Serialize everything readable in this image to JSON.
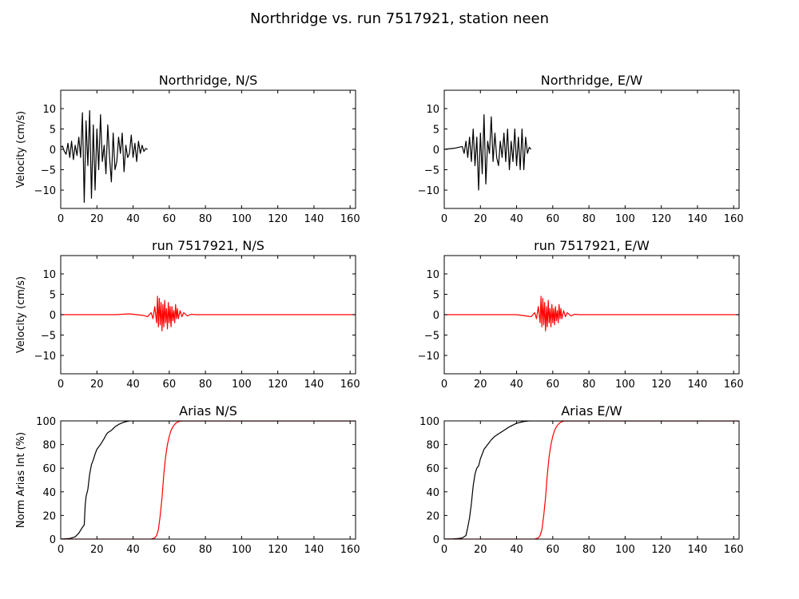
{
  "figure_title": "Northridge vs. run 7517921, station neen",
  "colors": {
    "recorded": "#000000",
    "simulated": "#ff0000"
  },
  "chart_data": [
    {
      "type": "line",
      "title": "Northridge, N/S",
      "xlabel": "",
      "ylabel": "Velocity (cm/s)",
      "xlim": [
        0,
        163
      ],
      "ylim": [
        -14.5,
        14.5
      ],
      "xticks": [
        0,
        20,
        40,
        60,
        80,
        100,
        120,
        140,
        160
      ],
      "yticks": [
        -10,
        -5,
        0,
        5,
        10
      ],
      "grid": false,
      "series": [
        {
          "color": "#000000",
          "x": [
            0,
            1,
            2,
            3,
            4,
            5,
            6,
            7,
            8,
            9,
            10,
            11,
            12,
            13,
            14,
            15,
            16,
            17,
            18,
            19,
            20,
            21,
            22,
            23,
            24,
            25,
            26,
            27,
            28,
            29,
            30,
            31,
            32,
            33,
            34,
            35,
            36,
            37,
            38,
            39,
            40,
            41,
            42,
            43,
            44,
            45,
            46,
            47,
            48
          ],
          "y": [
            0.5,
            0.8,
            -0.5,
            -1.2,
            1.5,
            -2,
            2,
            -2.5,
            1,
            -1.5,
            3,
            -2,
            9,
            -13,
            7,
            -4,
            9.5,
            -12,
            6,
            -10,
            5,
            -5,
            8.5,
            -3,
            1,
            -6,
            6,
            -2,
            -8,
            4,
            -5,
            -3,
            3,
            -1,
            4,
            -5.5,
            1,
            -2,
            -1,
            3.5,
            -2,
            1.5,
            -3,
            2,
            -1,
            1,
            -0.5,
            0.2,
            0
          ]
        }
      ]
    },
    {
      "type": "line",
      "title": "Northridge, E/W",
      "xlabel": "",
      "ylabel": "",
      "xlim": [
        0,
        163
      ],
      "ylim": [
        -14.5,
        14.5
      ],
      "xticks": [
        0,
        20,
        40,
        60,
        80,
        100,
        120,
        140,
        160
      ],
      "yticks": [
        -10,
        -5,
        0,
        5,
        10
      ],
      "grid": false,
      "series": [
        {
          "color": "#000000",
          "x": [
            0,
            2,
            4,
            6,
            8,
            10,
            11,
            12,
            13,
            14,
            15,
            16,
            17,
            18,
            19,
            20,
            21,
            22,
            23,
            24,
            25,
            26,
            27,
            28,
            29,
            30,
            31,
            32,
            33,
            34,
            35,
            36,
            37,
            38,
            39,
            40,
            41,
            42,
            43,
            44,
            45,
            46,
            47,
            48
          ],
          "y": [
            0,
            0.1,
            0.2,
            0.3,
            0.5,
            0.7,
            -1,
            2,
            -2,
            3,
            -3,
            5,
            -4,
            3,
            -10,
            4,
            -6,
            8.5,
            -8.5,
            2,
            -1,
            8,
            -3,
            4,
            -2,
            -4,
            2,
            -2,
            4,
            -3,
            5,
            -5,
            2,
            -3,
            5,
            -4,
            3,
            -5,
            5,
            -5,
            3,
            -1,
            0.5,
            0
          ]
        }
      ]
    },
    {
      "type": "line",
      "title": "run 7517921, N/S",
      "xlabel": "",
      "ylabel": "Velocity (cm/s)",
      "xlim": [
        0,
        163
      ],
      "ylim": [
        -14.5,
        14.5
      ],
      "xticks": [
        0,
        20,
        40,
        60,
        80,
        100,
        120,
        140,
        160
      ],
      "yticks": [
        -10,
        -5,
        0,
        5,
        10
      ],
      "grid": false,
      "series": [
        {
          "color": "#ff0000",
          "x": [
            0,
            10,
            20,
            30,
            38,
            42,
            46,
            48,
            50,
            51,
            52,
            53,
            53.5,
            54,
            54.5,
            55,
            55.5,
            56,
            56.5,
            57,
            57.5,
            58,
            58.5,
            59,
            59.5,
            60,
            60.5,
            61,
            61.5,
            62,
            62.5,
            63,
            63.5,
            64,
            64.5,
            65,
            66,
            67,
            68,
            70,
            72,
            75,
            80,
            90,
            100,
            120,
            140,
            160,
            163
          ],
          "y": [
            0,
            0,
            0,
            0,
            0.2,
            0,
            -0.2,
            -0.5,
            0.5,
            -1,
            2,
            -2,
            4.5,
            -3,
            4,
            -2.5,
            3,
            -4,
            2.5,
            -3,
            3.5,
            -2,
            1.5,
            -3.5,
            3,
            -2,
            2,
            -3,
            2,
            -1.5,
            1,
            -2,
            2.5,
            -1,
            1.5,
            -1,
            1,
            -0.5,
            0.5,
            -0.3,
            0.1,
            0,
            0,
            0,
            0,
            0,
            0,
            0,
            0
          ]
        }
      ]
    },
    {
      "type": "line",
      "title": "run 7517921, E/W",
      "xlabel": "",
      "ylabel": "",
      "xlim": [
        0,
        163
      ],
      "ylim": [
        -14.5,
        14.5
      ],
      "xticks": [
        0,
        20,
        40,
        60,
        80,
        100,
        120,
        140,
        160
      ],
      "yticks": [
        -10,
        -5,
        0,
        5,
        10
      ],
      "grid": false,
      "series": [
        {
          "color": "#ff0000",
          "x": [
            0,
            10,
            20,
            30,
            40,
            45,
            48,
            50,
            51,
            52,
            53,
            53.5,
            54,
            54.5,
            55,
            55.5,
            56,
            56.5,
            57,
            57.5,
            58,
            58.5,
            59,
            59.5,
            60,
            60.5,
            61,
            61.5,
            62,
            62.5,
            63,
            63.5,
            64,
            64.5,
            65,
            66,
            67,
            68,
            70,
            72,
            75,
            80,
            90,
            100,
            120,
            140,
            160,
            163
          ],
          "y": [
            0,
            0,
            0,
            0,
            0,
            -0.3,
            -0.5,
            0.5,
            -1,
            2,
            -2,
            4.5,
            -3,
            4,
            -2.5,
            3,
            -4,
            2,
            -3,
            3.5,
            -2,
            1.5,
            -3,
            2.5,
            -2,
            1.5,
            -2.5,
            2,
            -1.5,
            1,
            -2,
            2.5,
            -1,
            1.5,
            -1,
            1,
            -0.5,
            0.5,
            -0.3,
            0.1,
            0,
            0,
            0,
            0,
            0,
            0,
            0,
            0
          ]
        }
      ]
    },
    {
      "type": "line",
      "title": "Arias N/S",
      "xlabel": "",
      "ylabel": "Norm Arias Int (%)",
      "xlim": [
        0,
        163
      ],
      "ylim": [
        0,
        100
      ],
      "xticks": [
        0,
        20,
        40,
        60,
        80,
        100,
        120,
        140,
        160
      ],
      "yticks": [
        0,
        20,
        40,
        60,
        80,
        100
      ],
      "grid": false,
      "series": [
        {
          "color": "#000000",
          "x": [
            0,
            5,
            8,
            10,
            12,
            13,
            13.5,
            14,
            15,
            16,
            17,
            18,
            19,
            20,
            22,
            24,
            25,
            26,
            28,
            30,
            32,
            35,
            38,
            42,
            163
          ],
          "y": [
            0,
            0.5,
            2,
            5,
            10,
            12,
            28,
            36,
            42,
            55,
            63,
            67,
            72,
            76,
            80,
            85,
            88,
            90,
            92,
            95,
            97,
            99,
            100,
            100,
            100
          ]
        },
        {
          "color": "#ff0000",
          "x": [
            0,
            50,
            52,
            53,
            54,
            55,
            56,
            57,
            58,
            59,
            60,
            61,
            62,
            63,
            64,
            65,
            66,
            67,
            68,
            163
          ],
          "y": [
            0,
            0,
            1,
            3,
            8,
            20,
            35,
            55,
            70,
            80,
            87,
            92,
            95,
            97,
            98.5,
            99.3,
            99.8,
            100,
            100,
            100
          ]
        }
      ]
    },
    {
      "type": "line",
      "title": "Arias E/W",
      "xlabel": "",
      "ylabel": "",
      "xlim": [
        0,
        163
      ],
      "ylim": [
        0,
        100
      ],
      "xticks": [
        0,
        20,
        40,
        60,
        80,
        100,
        120,
        140,
        160
      ],
      "yticks": [
        0,
        20,
        40,
        60,
        80,
        100
      ],
      "grid": false,
      "series": [
        {
          "color": "#000000",
          "x": [
            0,
            5,
            8,
            10,
            12,
            13,
            14,
            15,
            16,
            17,
            18,
            19,
            20,
            21,
            22,
            24,
            26,
            28,
            30,
            33,
            36,
            40,
            44,
            47,
            163
          ],
          "y": [
            0,
            0.2,
            0.5,
            1,
            3,
            10,
            18,
            30,
            45,
            55,
            60,
            62,
            68,
            72,
            76,
            80,
            84,
            87,
            89,
            92,
            95,
            98,
            99.5,
            100,
            100
          ]
        },
        {
          "color": "#ff0000",
          "x": [
            0,
            50,
            52,
            53,
            54,
            55,
            56,
            57,
            58,
            59,
            60,
            61,
            62,
            63,
            64,
            65,
            66,
            67,
            68,
            163
          ],
          "y": [
            0,
            0,
            1,
            3,
            8,
            20,
            35,
            55,
            70,
            80,
            87,
            92,
            95,
            97,
            98.5,
            99.3,
            99.8,
            100,
            100,
            100
          ]
        }
      ]
    }
  ]
}
